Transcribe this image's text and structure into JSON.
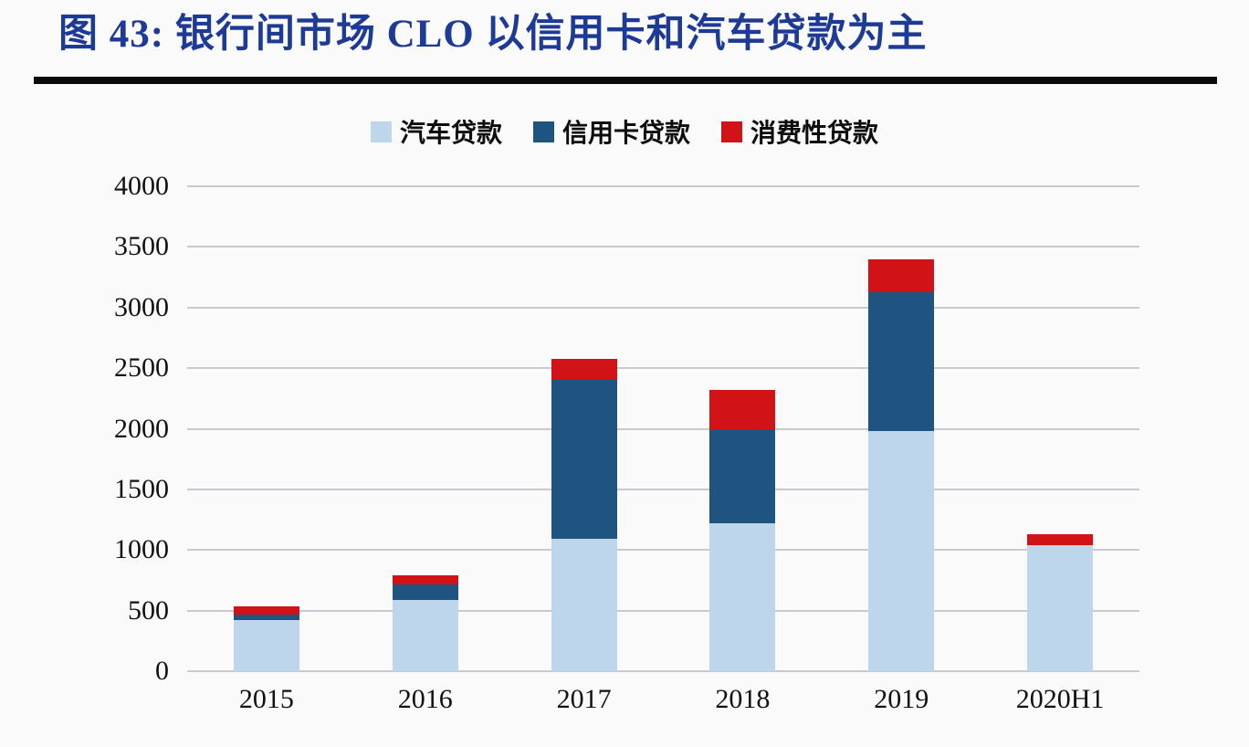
{
  "figure": {
    "title": "图 43: 银行间市场 CLO 以信用卡和汽车贷款为主"
  },
  "chart_data": {
    "type": "bar",
    "stacked": true,
    "title": "图 43: 银行间市场 CLO 以信用卡和汽车贷款为主",
    "categories": [
      "2015",
      "2016",
      "2017",
      "2018",
      "2019",
      "2020H1"
    ],
    "series": [
      {
        "name": "汽车贷款",
        "color": "#BDD6EC",
        "values": [
          420,
          590,
          1090,
          1220,
          1980,
          1040
        ]
      },
      {
        "name": "信用卡贷款",
        "color": "#1F5380",
        "values": [
          50,
          125,
          1310,
          780,
          1150,
          0
        ]
      },
      {
        "name": "消费性贷款",
        "color": "#D11216",
        "values": [
          65,
          75,
          180,
          320,
          270,
          90
        ]
      }
    ],
    "totals": [
      535,
      790,
      2580,
      2320,
      3400,
      1130
    ],
    "xlabel": "",
    "ylabel": "",
    "ylim": [
      0,
      4000
    ],
    "yticks": [
      0,
      500,
      1000,
      1500,
      2000,
      2500,
      3000,
      3500,
      4000
    ],
    "grid": true,
    "legend_position": "top",
    "colors": {
      "title_text": "#1C3A96",
      "rule": "#0A0A0A",
      "grid": "#C9CAD1",
      "tick_text": "#111111",
      "background": "#FBFAFB"
    }
  }
}
